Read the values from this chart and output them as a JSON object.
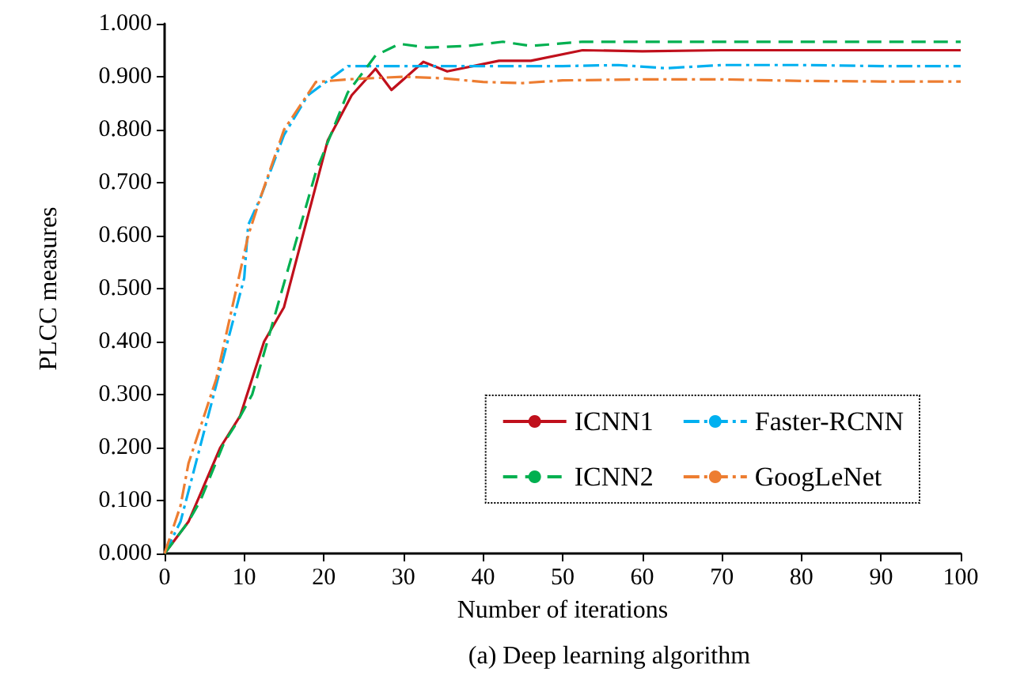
{
  "chart_data": {
    "type": "line",
    "title": "(a) Deep learning algorithm",
    "xlabel": "Number of iterations",
    "ylabel": "PLCC measures",
    "xlim": [
      0,
      100
    ],
    "xticks": [
      0,
      10,
      20,
      30,
      40,
      50,
      60,
      70,
      80,
      90,
      100
    ],
    "ylim": [
      0,
      1
    ],
    "yticks": [
      {
        "value": 0,
        "label": "0.000"
      },
      {
        "value": 0.1,
        "label": "0.100"
      },
      {
        "value": 0.2,
        "label": "0.200"
      },
      {
        "value": 0.3,
        "label": "0.300"
      },
      {
        "value": 0.4,
        "label": "0.400"
      },
      {
        "value": 0.5,
        "label": "0.500"
      },
      {
        "value": 0.6,
        "label": "0.600"
      },
      {
        "value": 0.7,
        "label": "0.700"
      },
      {
        "value": 0.8,
        "label": "0.800"
      },
      {
        "value": 0.9,
        "label": "0.900"
      },
      {
        "value": 1,
        "label": "1.000"
      }
    ],
    "grid": false,
    "legend": "bottom right",
    "marker": "none",
    "series": [
      {
        "name": "ICNN1",
        "color": "#c0101c",
        "line_style": "solid",
        "x": [
          0,
          3,
          7,
          9.5,
          12.5,
          15,
          20.5,
          23.5,
          26.5,
          28.5,
          32.5,
          35.5,
          42,
          46,
          52.5,
          60,
          70,
          80,
          90,
          100
        ],
        "values": [
          0,
          0.06,
          0.2,
          0.26,
          0.4,
          0.465,
          0.78,
          0.865,
          0.915,
          0.875,
          0.928,
          0.91,
          0.93,
          0.93,
          0.95,
          0.948,
          0.95,
          0.95,
          0.95,
          0.95
        ]
      },
      {
        "name": "Faster-RCNN",
        "color": "#00b0f0",
        "line_style": "dashdot",
        "x": [
          0,
          2,
          6,
          10,
          10.5,
          12,
          15,
          18,
          23,
          30,
          40,
          50,
          57,
          63,
          70,
          80,
          90,
          100
        ],
        "values": [
          0,
          0.06,
          0.29,
          0.52,
          0.62,
          0.67,
          0.79,
          0.865,
          0.92,
          0.92,
          0.92,
          0.92,
          0.922,
          0.916,
          0.922,
          0.922,
          0.92,
          0.92
        ]
      },
      {
        "name": "ICNN2",
        "color": "#00b050",
        "line_style": "dashed",
        "x": [
          0,
          3,
          4.5,
          7.5,
          9,
          11,
          15,
          19,
          23,
          26.5,
          29.5,
          33,
          38,
          42.5,
          46,
          52.5,
          60,
          70,
          80,
          90,
          100
        ],
        "values": [
          0,
          0.06,
          0.1,
          0.21,
          0.245,
          0.3,
          0.51,
          0.72,
          0.87,
          0.94,
          0.962,
          0.955,
          0.958,
          0.966,
          0.958,
          0.966,
          0.966,
          0.966,
          0.966,
          0.966,
          0.966
        ]
      },
      {
        "name": "GoogLeNet",
        "color": "#ed7d31",
        "line_style": "dashdot",
        "x": [
          0,
          2,
          3,
          6.5,
          10.5,
          12,
          15,
          19,
          23,
          30,
          35,
          40,
          45,
          50,
          60,
          70,
          80,
          90,
          100
        ],
        "values": [
          0,
          0.09,
          0.17,
          0.33,
          0.6,
          0.67,
          0.8,
          0.89,
          0.895,
          0.9,
          0.897,
          0.89,
          0.888,
          0.893,
          0.895,
          0.895,
          0.892,
          0.891,
          0.891
        ]
      }
    ]
  }
}
